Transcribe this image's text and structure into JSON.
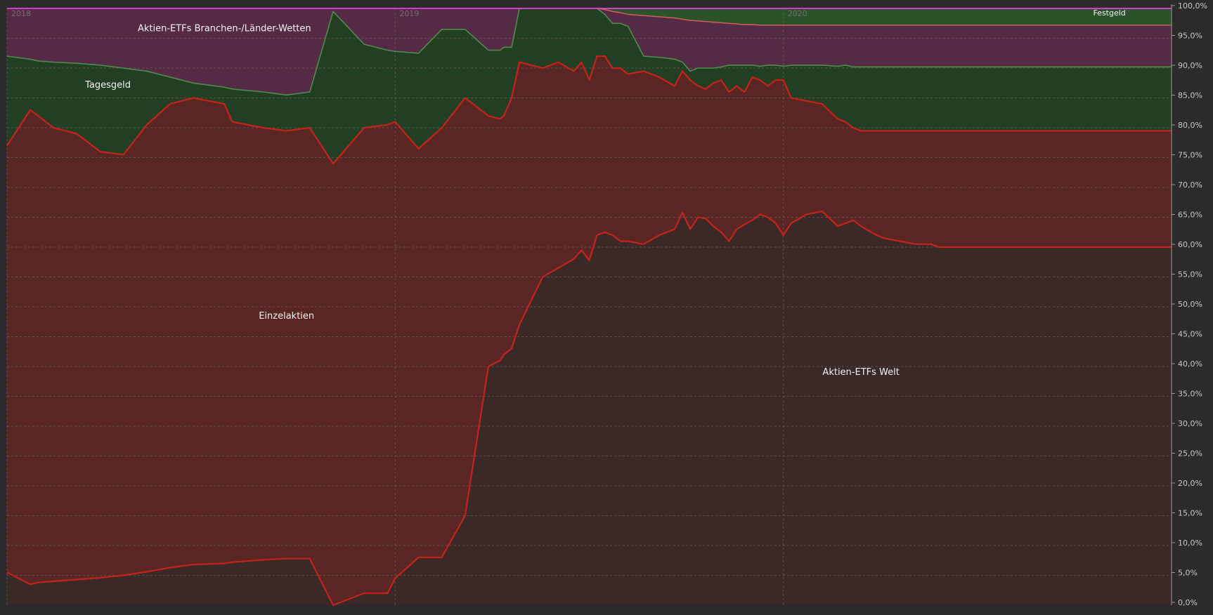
{
  "chart_data": {
    "type": "area",
    "stacked": true,
    "y_axis_side": "right",
    "ylim": [
      0,
      100
    ],
    "y_ticks": [
      "0,0%",
      "5,0%",
      "10,0%",
      "15,0%",
      "20,0%",
      "25,0%",
      "30,0%",
      "35,0%",
      "40,0%",
      "45,0%",
      "50,0%",
      "55,0%",
      "60,0%",
      "65,0%",
      "70,0%",
      "75,0%",
      "80,0%",
      "85,0%",
      "90,0%",
      "95,0%",
      "100,0%"
    ],
    "x_ticks": [
      "2018",
      "2019",
      "2020"
    ],
    "xlim": [
      2018.0,
      2021.0
    ],
    "grid": true,
    "colors": {
      "background": "#2b2b2b",
      "plot_bg": "#372a28",
      "grid": "#6a6060",
      "aktien_welt": "#3a2926",
      "einzelaktien": "#5a2624",
      "einzelaktien_line": "#c4231c",
      "tagesgeld": "#233f23",
      "tagesgeld_line": "#4f8b4c",
      "branchen": "#552a45",
      "branchen_line": "#b0b0b0",
      "festgeld": "#2c5229",
      "festgeld_line": "#d86060",
      "top_line": "#d23cc8"
    },
    "series_labels": [
      {
        "name": "Aktien-ETFs Branchen-/Länder-Wetten",
        "x": 2018.56,
        "y": 96.2,
        "size": "large"
      },
      {
        "name": "Tagesgeld",
        "x": 2018.26,
        "y": 86.7,
        "size": "large"
      },
      {
        "name": "Einzelaktien",
        "x": 2018.72,
        "y": 48.0,
        "size": "large"
      },
      {
        "name": "Aktien-ETFs Welt",
        "x": 2020.2,
        "y": 38.6,
        "size": "large"
      },
      {
        "name": "Festgeld",
        "x": 2020.84,
        "y": 98.8,
        "size": "small"
      }
    ],
    "cumulative": {
      "x": [
        2018.0,
        2018.06,
        2018.08,
        2018.12,
        2018.18,
        2018.24,
        2018.3,
        2018.36,
        2018.42,
        2018.48,
        2018.56,
        2018.58,
        2018.66,
        2018.72,
        2018.78,
        2018.84,
        2018.92,
        2018.98,
        2019.0,
        2019.06,
        2019.12,
        2019.18,
        2019.24,
        2019.27,
        2019.28,
        2019.3,
        2019.32,
        2019.38,
        2019.42,
        2019.46,
        2019.48,
        2019.5,
        2019.52,
        2019.54,
        2019.56,
        2019.58,
        2019.6,
        2019.64,
        2019.68,
        2019.72,
        2019.74,
        2019.76,
        2019.78,
        2019.8,
        2019.82,
        2019.84,
        2019.86,
        2019.88,
        2019.9,
        2019.92,
        2019.94,
        2019.96,
        2019.98,
        2020.0,
        2020.02,
        2020.06,
        2020.1,
        2020.14,
        2020.16,
        2020.18,
        2020.2,
        2020.24,
        2020.26,
        2020.3,
        2020.34,
        2020.38,
        2020.4,
        2020.42,
        2020.46,
        2020.5,
        2020.54,
        2020.56,
        2020.6,
        2020.64,
        2020.68,
        2020.7,
        2020.72,
        2020.74,
        2020.78,
        2020.82,
        2020.86,
        2020.9,
        2020.94,
        2020.98,
        2021.0
      ],
      "aktien_welt": [
        5.5,
        3.5,
        3.8,
        4.0,
        4.3,
        4.6,
        5.0,
        5.6,
        6.3,
        6.8,
        7.0,
        7.2,
        7.6,
        7.8,
        7.8,
        0.0,
        2.0,
        2.0,
        4.5,
        8.0,
        8.0,
        15.0,
        40.0,
        41.0,
        42.0,
        43.0,
        47.0,
        55.0,
        56.5,
        58.0,
        59.5,
        57.8,
        62.0,
        62.5,
        62.0,
        61.0,
        61.0,
        60.5,
        62.0,
        63.0,
        65.8,
        63.0,
        65.0,
        64.8,
        63.5,
        62.5,
        61.0,
        63.0,
        63.8,
        64.5,
        65.5,
        65.0,
        64.0,
        62.0,
        64.0,
        65.5,
        66.0,
        63.5,
        64.0,
        64.5,
        63.5,
        62.0,
        61.5,
        61.0,
        60.5,
        60.5,
        60.0,
        60.0,
        60.0,
        60.0,
        60.0,
        60.0,
        60.0,
        60.0,
        60.0,
        60.0,
        60.0,
        60.0,
        60.0,
        60.0,
        60.0,
        60.0,
        60.0,
        60.0,
        60.0
      ],
      "einzelaktien_top": [
        77,
        83,
        82,
        80,
        79,
        76,
        75.5,
        80.5,
        84,
        85,
        84,
        81,
        80,
        79.5,
        80,
        74,
        80,
        80.5,
        81,
        76.5,
        80,
        85,
        82,
        81.5,
        82,
        85,
        91,
        90,
        91,
        89.5,
        91,
        88,
        92,
        92,
        90,
        90,
        89,
        89.5,
        88.5,
        87,
        89.5,
        88,
        87,
        86.5,
        87.5,
        88,
        86,
        87,
        86,
        88.5,
        88,
        87,
        88,
        88,
        85,
        84.5,
        84,
        81.5,
        81,
        80,
        79.5,
        79.5,
        79.5,
        79.5,
        79.5,
        79.5,
        79.5,
        79.5,
        79.5,
        79.5,
        79.5,
        79.5,
        79.5,
        79.5,
        79.5,
        79.5,
        79.5,
        79.5,
        79.5,
        79.5,
        79.5,
        79.5,
        79.5,
        79.5,
        79.5
      ],
      "tagesgeld_top": [
        92,
        91.5,
        91.2,
        91,
        90.8,
        90.5,
        90.0,
        89.5,
        88.5,
        87.5,
        86.8,
        86.5,
        86.0,
        85.5,
        86.0,
        99.5,
        94.0,
        93.0,
        92.8,
        92.5,
        96.5,
        96.5,
        93.0,
        93.0,
        93.5,
        93.5,
        100,
        100,
        100,
        100,
        100,
        100,
        100,
        99.0,
        97.5,
        97.5,
        97.0,
        92.0,
        91.8,
        91.5,
        91.0,
        89.5,
        90.0,
        90.0,
        90.0,
        90.2,
        90.5,
        90.5,
        90.5,
        90.5,
        90.3,
        90.5,
        90.5,
        90.3,
        90.5,
        90.5,
        90.5,
        90.3,
        90.5,
        90.2,
        90.2,
        90.2,
        90.2,
        90.2,
        90.2,
        90.2,
        90.2,
        90.2,
        90.2,
        90.2,
        90.2,
        90.2,
        90.2,
        90.2,
        90.2,
        90.2,
        90.2,
        90.2,
        90.2,
        90.2,
        90.2,
        90.2,
        90.2,
        90.2,
        90.2
      ],
      "branchen_top": [
        100,
        100,
        100,
        100,
        100,
        100,
        100,
        100,
        100,
        100,
        100,
        100,
        100,
        100,
        100,
        100,
        100,
        100,
        100,
        100,
        100,
        100,
        100,
        100,
        100,
        100,
        100,
        100,
        100,
        100,
        100,
        100,
        100,
        99.8,
        99.5,
        99.3,
        99.0,
        98.8,
        98.6,
        98.4,
        98.2,
        98.0,
        97.9,
        97.8,
        97.7,
        97.6,
        97.5,
        97.4,
        97.3,
        97.3,
        97.2,
        97.2,
        97.2,
        97.2,
        97.2,
        97.2,
        97.2,
        97.2,
        97.2,
        97.2,
        97.2,
        97.2,
        97.2,
        97.2,
        97.2,
        97.2,
        97.2,
        97.2,
        97.2,
        97.2,
        97.2,
        97.2,
        97.2,
        97.2,
        97.2,
        97.2,
        97.2,
        97.2,
        97.2,
        97.2,
        97.2,
        97.2,
        97.2,
        97.2,
        97.2
      ]
    }
  }
}
